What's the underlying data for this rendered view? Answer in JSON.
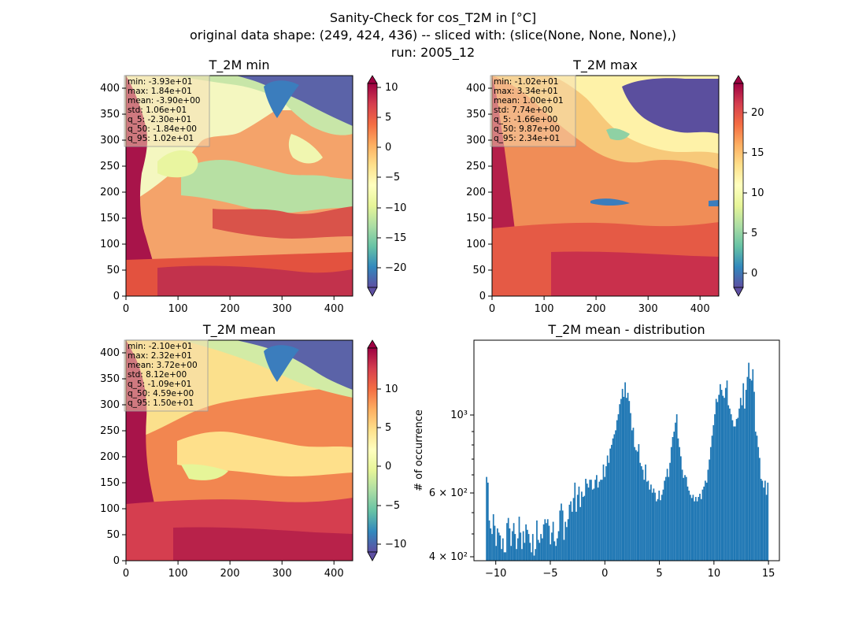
{
  "suptitle": [
    "Sanity-Check for cos_T2M in [°C]",
    "original data shape: (249, 424, 436) -- sliced with: (slice(None, None, None),)",
    "run: 2005_12"
  ],
  "chart_data": [
    {
      "type": "heatmap",
      "title": "T_2M min",
      "colormap": "Spectral_r",
      "xlim": [
        0,
        436
      ],
      "ylim": [
        0,
        424
      ],
      "xticks": [
        "0",
        "100",
        "200",
        "300",
        "400"
      ],
      "yticks": [
        "0",
        "50",
        "100",
        "150",
        "200",
        "250",
        "300",
        "350",
        "400"
      ],
      "clim": [
        -23.0,
        10.2
      ],
      "cbar_ticks": [
        "10",
        "5",
        "0",
        "−5",
        "−10",
        "−15",
        "−20"
      ],
      "stats": [
        "min: -3.93e+01",
        "max: 1.84e+01",
        "mean: -3.90e+00",
        "std: 1.06e+01",
        "q_5: -2.30e+01",
        "q_50: -1.84e+00",
        "q_95: 1.02e+01"
      ]
    },
    {
      "type": "heatmap",
      "title": "T_2M max",
      "colormap": "Spectral_r",
      "xlim": [
        0,
        436
      ],
      "ylim": [
        0,
        424
      ],
      "xticks": [
        "0",
        "100",
        "200",
        "300",
        "400"
      ],
      "yticks": [
        "0",
        "50",
        "100",
        "150",
        "200",
        "250",
        "300",
        "350",
        "400"
      ],
      "clim": [
        -1.66,
        23.4
      ],
      "cbar_ticks": [
        "20",
        "15",
        "10",
        "5",
        "0"
      ],
      "stats": [
        "min: -1.02e+01",
        "max: 3.34e+01",
        "mean: 1.00e+01",
        "std: 7.74e+00",
        "q_5: -1.66e+00",
        "q_50: 9.87e+00",
        "q_95: 2.34e+01"
      ]
    },
    {
      "type": "heatmap",
      "title": "T_2M mean",
      "colormap": "Spectral_r",
      "xlim": [
        0,
        436
      ],
      "ylim": [
        0,
        424
      ],
      "xticks": [
        "0",
        "100",
        "200",
        "300",
        "400"
      ],
      "yticks": [
        "0",
        "50",
        "100",
        "150",
        "200",
        "250",
        "300",
        "350",
        "400"
      ],
      "clim": [
        -10.9,
        15.0
      ],
      "cbar_ticks": [
        "10",
        "5",
        "0",
        "−5",
        "−10"
      ],
      "stats": [
        "min: -2.10e+01",
        "max: 2.32e+01",
        "mean: 3.72e+00",
        "std: 8.12e+00",
        "q_5: -1.09e+01",
        "q_50: 4.59e+00",
        "q_95: 1.50e+01"
      ]
    },
    {
      "type": "bar",
      "title": "T_2M mean - distribution",
      "ylabel": "# of occurrence",
      "yscale": "log",
      "ylim": [
        385,
        2000
      ],
      "xlim": [
        -12.0,
        16.0
      ],
      "xticks": [
        "−10",
        "−5",
        "0",
        "5",
        "10",
        "15"
      ],
      "ytick_labels": [
        "4 × 10²",
        "6 × 10²",
        "10³"
      ],
      "color": "#1f77b4",
      "bin_range": [
        -10.9,
        15.0
      ],
      "counts": [
        720,
        690,
        520,
        490,
        470,
        545,
        500,
        430,
        490,
        475,
        465,
        420,
        455,
        410,
        410,
        510,
        530,
        490,
        430,
        480,
        510,
        470,
        420,
        455,
        535,
        475,
        420,
        480,
        440,
        505,
        485,
        470,
        440,
        410,
        470,
        400,
        420,
        520,
        450,
        440,
        470,
        455,
        505,
        525,
        510,
        525,
        500,
        435,
        475,
        515,
        445,
        430,
        455,
        480,
        560,
        590,
        560,
        450,
        515,
        495,
        525,
        585,
        600,
        555,
        615,
        690,
        555,
        630,
        670,
        575,
        645,
        620,
        625,
        710,
        685,
        665,
        705,
        705,
        655,
        660,
        705,
        730,
        665,
        695,
        705,
        705,
        790,
        720,
        780,
        845,
        800,
        890,
        915,
        960,
        990,
        1020,
        1100,
        1150,
        1240,
        1290,
        1390,
        1310,
        1460,
        1300,
        1350,
        1270,
        1160,
        1020,
        1040,
        900,
        880,
        870,
        920,
        800,
        780,
        760,
        705,
        790,
        695,
        700,
        655,
        680,
        640,
        660,
        640,
        600,
        610,
        650,
        605,
        630,
        655,
        700,
        720,
        765,
        720,
        800,
        900,
        970,
        1010,
        1080,
        1150,
        960,
        900,
        840,
        760,
        715,
        730,
        720,
        670,
        650,
        630,
        615,
        630,
        600,
        620,
        600,
        620,
        635,
        610,
        655,
        670,
        700,
        690,
        760,
        820,
        900,
        980,
        1060,
        1150,
        1290,
        1260,
        1330,
        1440,
        1380,
        1320,
        1300,
        1400,
        1480,
        1230,
        1200,
        1150,
        1100,
        1050,
        1050,
        1110,
        1120,
        1200,
        1300,
        1230,
        1450,
        1200,
        1380,
        1520,
        1690,
        1500,
        1480,
        1610,
        1360,
        1010,
        980,
        900,
        830,
        710,
        700,
        665,
        700,
        630,
        690
      ]
    }
  ]
}
